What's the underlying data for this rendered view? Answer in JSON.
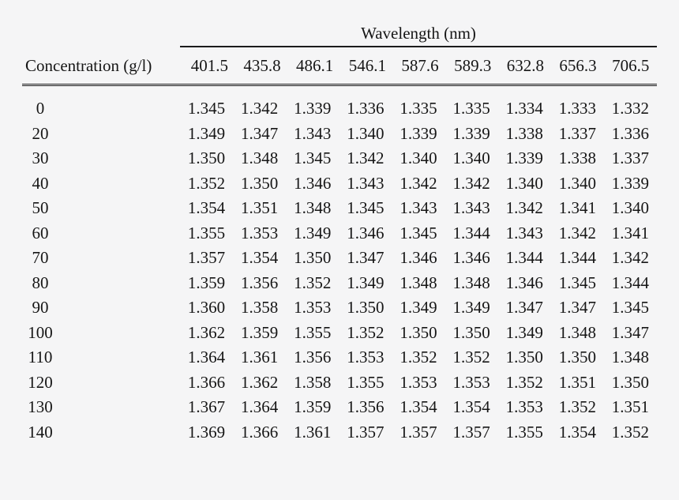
{
  "page": {
    "background_color": "#f5f5f6",
    "text_color": "#161616",
    "rule_color": "#1c1c1c"
  },
  "table": {
    "spanner_label": "Wavelength (nm)",
    "row_header_label": "Concentration (g/l)",
    "wavelengths": [
      "401.5",
      "435.8",
      "486.1",
      "546.1",
      "587.6",
      "589.3",
      "632.8",
      "656.3",
      "706.5"
    ],
    "rows": [
      {
        "concentration": "0",
        "values": [
          "1.345",
          "1.342",
          "1.339",
          "1.336",
          "1.335",
          "1.335",
          "1.334",
          "1.333",
          "1.332"
        ]
      },
      {
        "concentration": "20",
        "values": [
          "1.349",
          "1.347",
          "1.343",
          "1.340",
          "1.339",
          "1.339",
          "1.338",
          "1.337",
          "1.336"
        ]
      },
      {
        "concentration": "30",
        "values": [
          "1.350",
          "1.348",
          "1.345",
          "1.342",
          "1.340",
          "1.340",
          "1.339",
          "1.338",
          "1.337"
        ]
      },
      {
        "concentration": "40",
        "values": [
          "1.352",
          "1.350",
          "1.346",
          "1.343",
          "1.342",
          "1.342",
          "1.340",
          "1.340",
          "1.339"
        ]
      },
      {
        "concentration": "50",
        "values": [
          "1.354",
          "1.351",
          "1.348",
          "1.345",
          "1.343",
          "1.343",
          "1.342",
          "1.341",
          "1.340"
        ]
      },
      {
        "concentration": "60",
        "values": [
          "1.355",
          "1.353",
          "1.349",
          "1.346",
          "1.345",
          "1.344",
          "1.343",
          "1.342",
          "1.341"
        ]
      },
      {
        "concentration": "70",
        "values": [
          "1.357",
          "1.354",
          "1.350",
          "1.347",
          "1.346",
          "1.346",
          "1.344",
          "1.344",
          "1.342"
        ]
      },
      {
        "concentration": "80",
        "values": [
          "1.359",
          "1.356",
          "1.352",
          "1.349",
          "1.348",
          "1.348",
          "1.346",
          "1.345",
          "1.344"
        ]
      },
      {
        "concentration": "90",
        "values": [
          "1.360",
          "1.358",
          "1.353",
          "1.350",
          "1.349",
          "1.349",
          "1.347",
          "1.347",
          "1.345"
        ]
      },
      {
        "concentration": "100",
        "values": [
          "1.362",
          "1.359",
          "1.355",
          "1.352",
          "1.350",
          "1.350",
          "1.349",
          "1.348",
          "1.347"
        ]
      },
      {
        "concentration": "110",
        "values": [
          "1.364",
          "1.361",
          "1.356",
          "1.353",
          "1.352",
          "1.352",
          "1.350",
          "1.350",
          "1.348"
        ]
      },
      {
        "concentration": "120",
        "values": [
          "1.366",
          "1.362",
          "1.358",
          "1.355",
          "1.353",
          "1.353",
          "1.352",
          "1.351",
          "1.350"
        ]
      },
      {
        "concentration": "130",
        "values": [
          "1.367",
          "1.364",
          "1.359",
          "1.356",
          "1.354",
          "1.354",
          "1.353",
          "1.352",
          "1.351"
        ]
      },
      {
        "concentration": "140",
        "values": [
          "1.369",
          "1.366",
          "1.361",
          "1.357",
          "1.357",
          "1.357",
          "1.355",
          "1.354",
          "1.352"
        ]
      }
    ]
  },
  "chart_data": {
    "type": "table",
    "title": "Wavelength (nm)",
    "row_header": "Concentration (g/l)",
    "columns": [
      "401.5",
      "435.8",
      "486.1",
      "546.1",
      "587.6",
      "589.3",
      "632.8",
      "656.3",
      "706.5"
    ],
    "row_labels": [
      "0",
      "20",
      "30",
      "40",
      "50",
      "60",
      "70",
      "80",
      "90",
      "100",
      "110",
      "120",
      "130",
      "140"
    ],
    "values": [
      [
        1.345,
        1.342,
        1.339,
        1.336,
        1.335,
        1.335,
        1.334,
        1.333,
        1.332
      ],
      [
        1.349,
        1.347,
        1.343,
        1.34,
        1.339,
        1.339,
        1.338,
        1.337,
        1.336
      ],
      [
        1.35,
        1.348,
        1.345,
        1.342,
        1.34,
        1.34,
        1.339,
        1.338,
        1.337
      ],
      [
        1.352,
        1.35,
        1.346,
        1.343,
        1.342,
        1.342,
        1.34,
        1.34,
        1.339
      ],
      [
        1.354,
        1.351,
        1.348,
        1.345,
        1.343,
        1.343,
        1.342,
        1.341,
        1.34
      ],
      [
        1.355,
        1.353,
        1.349,
        1.346,
        1.345,
        1.344,
        1.343,
        1.342,
        1.341
      ],
      [
        1.357,
        1.354,
        1.35,
        1.347,
        1.346,
        1.346,
        1.344,
        1.344,
        1.342
      ],
      [
        1.359,
        1.356,
        1.352,
        1.349,
        1.348,
        1.348,
        1.346,
        1.345,
        1.344
      ],
      [
        1.36,
        1.358,
        1.353,
        1.35,
        1.349,
        1.349,
        1.347,
        1.347,
        1.345
      ],
      [
        1.362,
        1.359,
        1.355,
        1.352,
        1.35,
        1.35,
        1.349,
        1.348,
        1.347
      ],
      [
        1.364,
        1.361,
        1.356,
        1.353,
        1.352,
        1.352,
        1.35,
        1.35,
        1.348
      ],
      [
        1.366,
        1.362,
        1.358,
        1.355,
        1.353,
        1.353,
        1.352,
        1.351,
        1.35
      ],
      [
        1.367,
        1.364,
        1.359,
        1.356,
        1.354,
        1.354,
        1.353,
        1.352,
        1.351
      ],
      [
        1.369,
        1.366,
        1.361,
        1.357,
        1.357,
        1.357,
        1.355,
        1.354,
        1.352
      ]
    ]
  }
}
